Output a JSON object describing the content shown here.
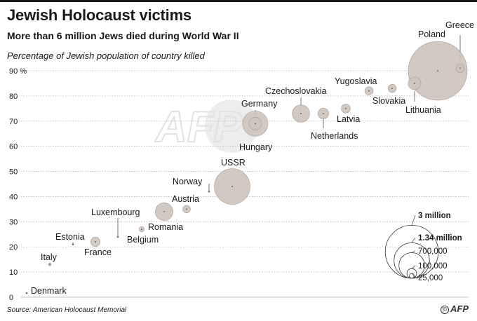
{
  "header": {
    "title": "Jewish Holocaust victims",
    "subtitle": "More than 6 million Jews died during World War II",
    "ylabel": "Percentage of Jewish population of country killed"
  },
  "footer": {
    "source": "Source: American Holocaust Memorial",
    "logo_text": "AFP",
    "copyright": "©"
  },
  "watermark": "AFP",
  "chart_data": {
    "type": "scatter",
    "title": "Jewish Holocaust victims",
    "subtitle": "More than 6 million Jews died during World War II",
    "ylabel": "Percentage of Jewish population of country killed",
    "ylim": [
      0,
      90
    ],
    "yticks": [
      "0",
      "10",
      "20",
      "30",
      "40",
      "50",
      "60",
      "70",
      "80",
      "90 %"
    ],
    "grid": true,
    "size_legend_placement": "bottom-right",
    "size_legend": [
      {
        "label": "3 million",
        "value": 3000000,
        "bold": true
      },
      {
        "label": "1.34 million",
        "value": 1340000,
        "bold": true
      },
      {
        "label": "700,000",
        "value": 700000,
        "bold": false
      },
      {
        "label": "100,000",
        "value": 100000,
        "bold": false
      },
      {
        "label": "25,000",
        "value": 25000,
        "bold": false
      }
    ],
    "points": [
      {
        "name": "Denmark",
        "y": 1.6,
        "victims": 60
      },
      {
        "name": "Italy",
        "y": 13,
        "victims": 7500
      },
      {
        "name": "Estonia",
        "y": 21,
        "victims": 1000
      },
      {
        "name": "France",
        "y": 22,
        "victims": 77000
      },
      {
        "name": "Luxembourg",
        "y": 24,
        "victims": 700
      },
      {
        "name": "Belgium",
        "y": 27,
        "victims": 24000
      },
      {
        "name": "Romania",
        "y": 34,
        "victims": 271000
      },
      {
        "name": "Austria",
        "y": 35,
        "victims": 50000
      },
      {
        "name": "Norway",
        "y": 42,
        "victims": 760
      },
      {
        "name": "USSR",
        "y": 44,
        "victims": 1100000
      },
      {
        "name": "Germany",
        "y": 69,
        "victims": 140000
      },
      {
        "name": "Hungary",
        "y": 69,
        "victims": 550000
      },
      {
        "name": "Czechoslovakia",
        "y": 73,
        "victims": 260000
      },
      {
        "name": "Netherlands",
        "y": 73,
        "victims": 100000
      },
      {
        "name": "Latvia",
        "y": 75,
        "victims": 70000
      },
      {
        "name": "Yugoslavia",
        "y": 82,
        "victims": 60000
      },
      {
        "name": "Slovakia",
        "y": 83,
        "victims": 60000
      },
      {
        "name": "Lithuania",
        "y": 85,
        "victims": 140000
      },
      {
        "name": "Poland",
        "y": 90,
        "victims": 3000000
      },
      {
        "name": "Greece",
        "y": 91,
        "victims": 60000
      }
    ]
  },
  "colors": {
    "bubble_fill": "#cfc4be",
    "bubble_stroke": "#a89a93",
    "grid": "#b5b5b5",
    "text": "#1a1a1a",
    "leader": "#555555"
  }
}
